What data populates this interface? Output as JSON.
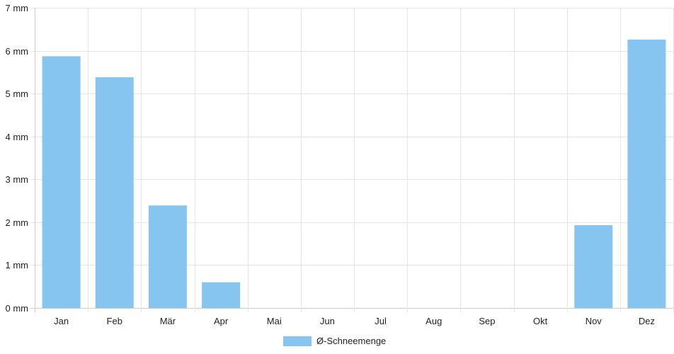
{
  "chart_data": {
    "type": "bar",
    "categories": [
      "Jan",
      "Feb",
      "Mär",
      "Apr",
      "Mai",
      "Jun",
      "Jul",
      "Aug",
      "Sep",
      "Okt",
      "Nov",
      "Dez"
    ],
    "series": [
      {
        "name": "Ø-Schneemenge",
        "values": [
          5.87,
          5.38,
          2.39,
          0.6,
          0,
          0,
          0,
          0,
          0,
          0,
          1.93,
          6.26
        ]
      }
    ],
    "ylim": [
      0,
      7
    ],
    "yticks": [
      0,
      1,
      2,
      3,
      4,
      5,
      6,
      7
    ],
    "y_tick_suffix": " mm",
    "grid": true,
    "legend_position": "bottom",
    "colors": {
      "bar": "#86c5f0",
      "grid": "#e5e5e5",
      "axis": "#cccccc"
    }
  }
}
